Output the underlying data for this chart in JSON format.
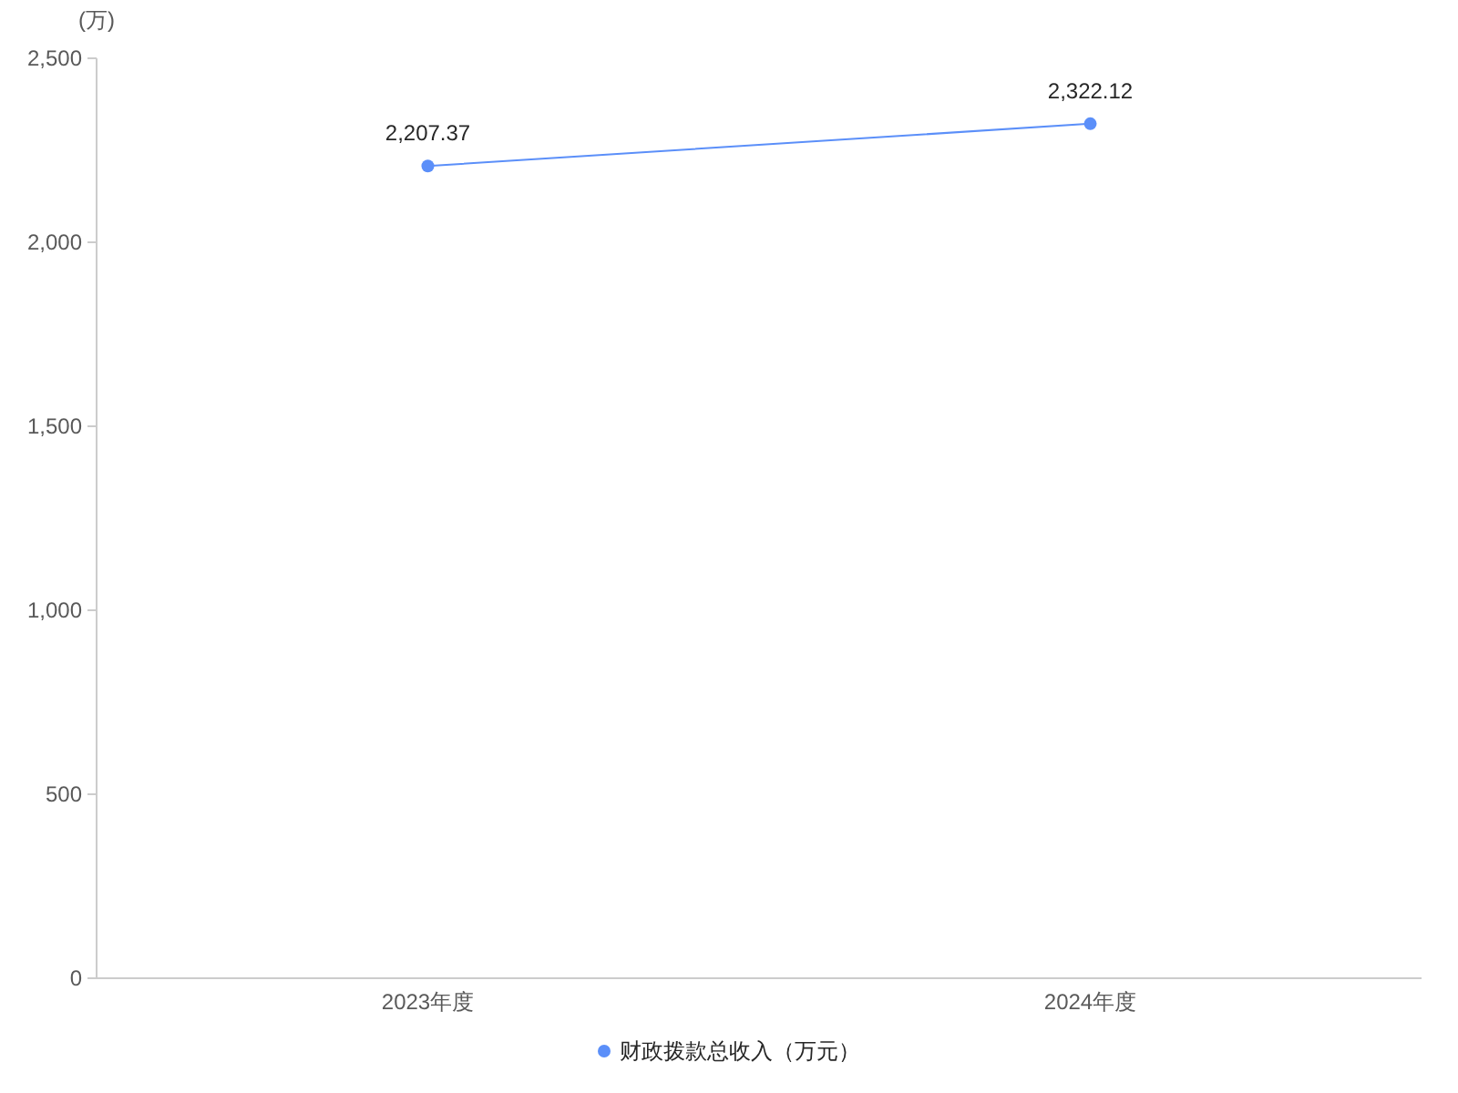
{
  "chart_data": {
    "type": "line",
    "ylabel": "(万)",
    "categories": [
      "2023年度",
      "2024年度"
    ],
    "series": [
      {
        "name": "财政拨款总收入（万元）",
        "color": "#5b8ff9",
        "values": [
          2207.37,
          2322.12
        ],
        "value_labels": [
          "2,207.37",
          "2,322.12"
        ]
      }
    ],
    "ylim": [
      0,
      2500
    ],
    "yticks": [
      0,
      {
        "value": 500,
        "label": "500"
      },
      {
        "value": 1000,
        "label": "1,000"
      },
      {
        "value": 1500,
        "label": "1,500"
      },
      {
        "value": 2000,
        "label": "2,000"
      },
      {
        "value": 2500,
        "label": "2,500"
      }
    ],
    "marker": "circle",
    "line_style": "solid",
    "legend": "bottom",
    "grid": false
  }
}
